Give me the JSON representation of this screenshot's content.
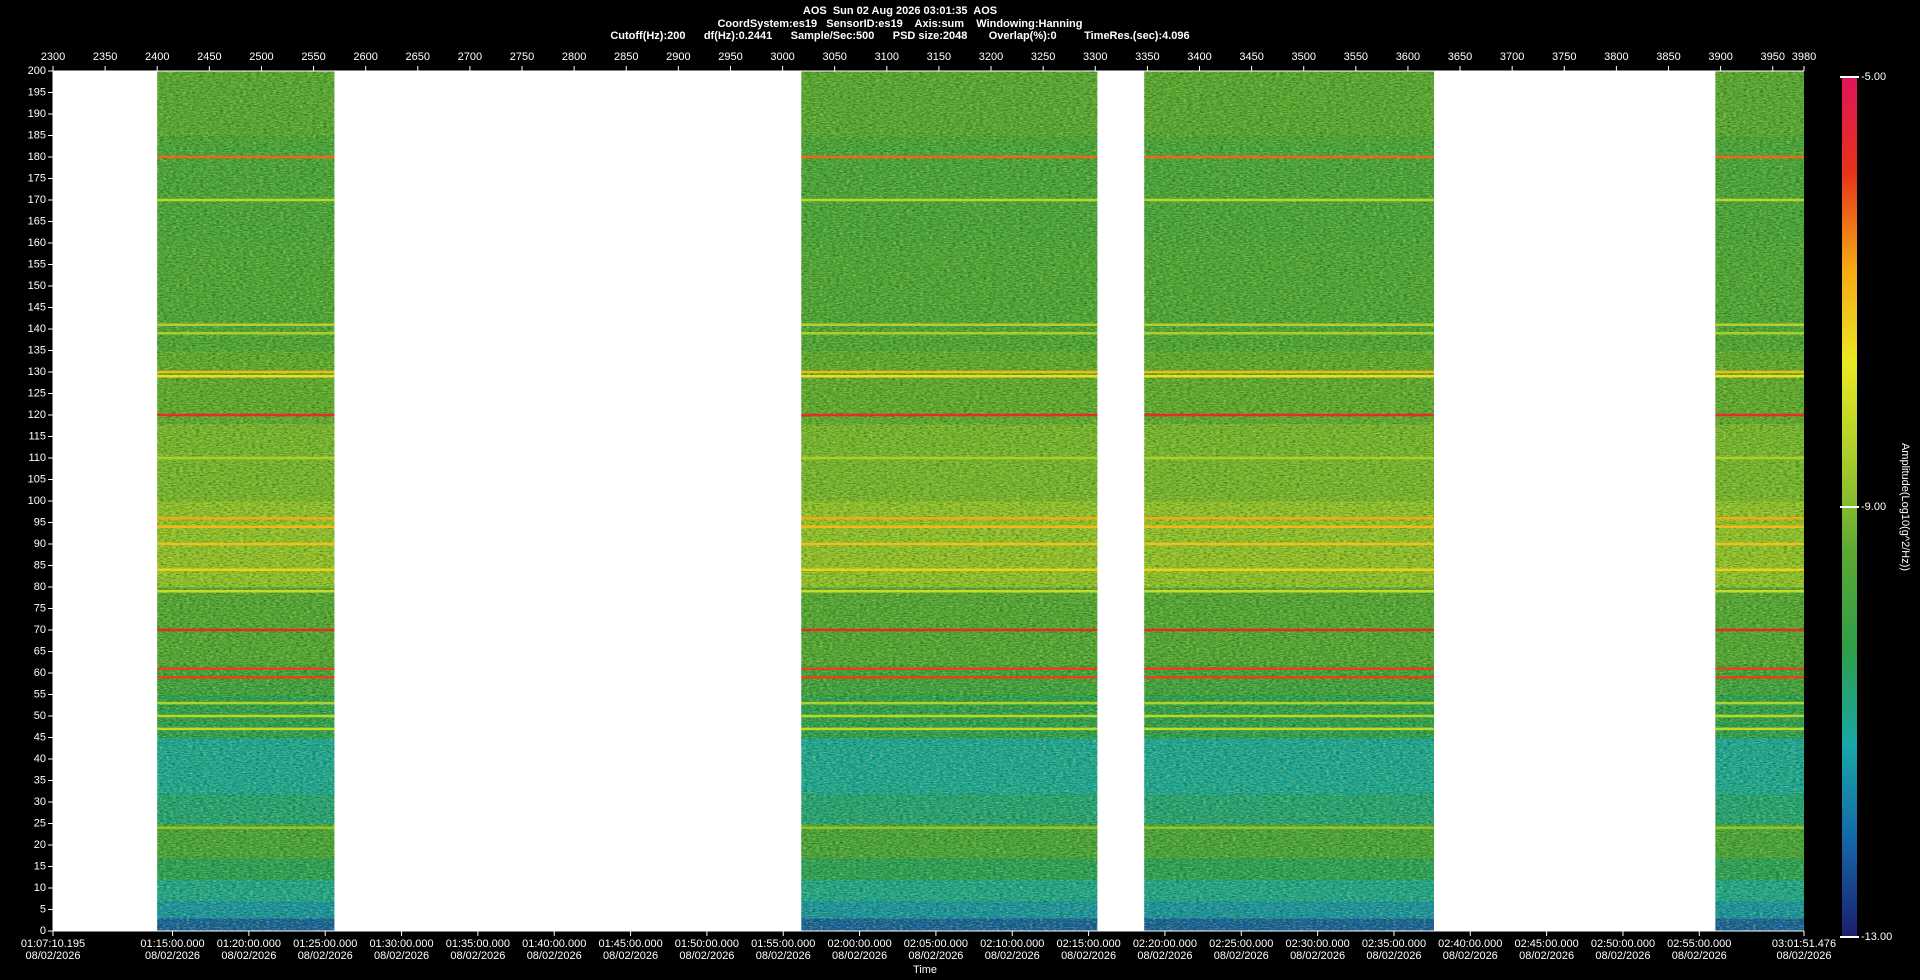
{
  "chart_data": {
    "type": "spectrogram",
    "title": [
      "AOS  Sun 02 Aug 2026 03:01:35  AOS",
      "CoordSystem:es19   SensorID:es19    Axis:sum    Windowing:Hanning",
      "Cutoff(Hz):200      df(Hz):0.2441      Sample/Sec:500      PSD size:2048       Overlap(%):0         TimeRes.(sec):4.096"
    ],
    "xlabel": "Time",
    "colorbar_label": "Amplitude(Log10(g^2/Hz))",
    "xlim": [
      2300,
      3980
    ],
    "xticks": [
      2300,
      2350,
      2400,
      2450,
      2500,
      2550,
      2600,
      2650,
      2700,
      2750,
      2800,
      2850,
      2900,
      2950,
      3000,
      3050,
      3100,
      3150,
      3200,
      3250,
      3300,
      3350,
      3400,
      3450,
      3500,
      3550,
      3600,
      3650,
      3700,
      3750,
      3800,
      3850,
      3900,
      3950,
      3980
    ],
    "ylim": [
      0,
      200
    ],
    "yticks": [
      0,
      5,
      10,
      15,
      20,
      25,
      30,
      35,
      40,
      45,
      50,
      55,
      60,
      65,
      70,
      75,
      80,
      85,
      90,
      95,
      100,
      105,
      110,
      115,
      120,
      125,
      130,
      135,
      140,
      145,
      150,
      155,
      160,
      165,
      170,
      175,
      180,
      185,
      190,
      195,
      200
    ],
    "time_axis": {
      "lim": [
        4030.195,
        10911.476
      ],
      "date": "08/02/2026",
      "ticks": [
        {
          "value": 4030.195,
          "label": "01:07:10.195"
        },
        {
          "value": 4500,
          "label": "01:15:00.000"
        },
        {
          "value": 4800,
          "label": "01:20:00.000"
        },
        {
          "value": 5100,
          "label": "01:25:00.000"
        },
        {
          "value": 5400,
          "label": "01:30:00.000"
        },
        {
          "value": 5700,
          "label": "01:35:00.000"
        },
        {
          "value": 6000,
          "label": "01:40:00.000"
        },
        {
          "value": 6300,
          "label": "01:45:00.000"
        },
        {
          "value": 6600,
          "label": "01:50:00.000"
        },
        {
          "value": 6900,
          "label": "01:55:00.000"
        },
        {
          "value": 7200,
          "label": "02:00:00.000"
        },
        {
          "value": 7500,
          "label": "02:05:00.000"
        },
        {
          "value": 7800,
          "label": "02:10:00.000"
        },
        {
          "value": 8100,
          "label": "02:15:00.000"
        },
        {
          "value": 8400,
          "label": "02:20:00.000"
        },
        {
          "value": 8700,
          "label": "02:25:00.000"
        },
        {
          "value": 9000,
          "label": "02:30:00.000"
        },
        {
          "value": 9300,
          "label": "02:35:00.000"
        },
        {
          "value": 9600,
          "label": "02:40:00.000"
        },
        {
          "value": 9900,
          "label": "02:45:00.000"
        },
        {
          "value": 10200,
          "label": "02:50:00.000"
        },
        {
          "value": 10500,
          "label": "02:55:00.000"
        },
        {
          "value": 10911.476,
          "label": "03:01:51.476"
        }
      ]
    },
    "segments": [
      [
        2400,
        2570
      ],
      [
        3018,
        3302
      ],
      [
        3347,
        3625
      ],
      [
        3895,
        3980
      ]
    ],
    "profile": {
      "edges": [
        0,
        3,
        7,
        12,
        17,
        25,
        32,
        45,
        55,
        62,
        80,
        100,
        118,
        135,
        160,
        185,
        200
      ],
      "levels": [
        -12.2,
        -11.5,
        -11,
        -10.5,
        -9.8,
        -10.8,
        -11.1,
        -10.4,
        -10,
        -9.6,
        -8.8,
        -9.1,
        -9.4,
        -9.7,
        -9.8,
        -9.5
      ]
    },
    "lines": {
      "freq": [
        180,
        170,
        141,
        139,
        130,
        129,
        120,
        110,
        96,
        94,
        90,
        84,
        79,
        70,
        61,
        59,
        53,
        50,
        47,
        24
      ],
      "level": [
        -6.3,
        -8.3,
        -8.4,
        -8.5,
        -7,
        -7.5,
        -5.7,
        -8.5,
        -6.8,
        -7,
        -7.1,
        -7.3,
        -8.1,
        -5.7,
        -6,
        -6,
        -8.4,
        -8.3,
        -8.2,
        -8.8
      ]
    },
    "clim": [
      -13,
      -5
    ],
    "cticks": [
      {
        "value": -5,
        "label": "-5.00"
      },
      {
        "value": -9,
        "label": "-9.00"
      },
      {
        "value": -13,
        "label": "-13.00"
      }
    ],
    "colorscale": [
      "#1a1f6e",
      "#1565a8",
      "#17a8a8",
      "#2e9e4a",
      "#5aa832",
      "#a8cc2a",
      "#eaea22",
      "#f5a814",
      "#e8321a",
      "#e0145a"
    ]
  }
}
